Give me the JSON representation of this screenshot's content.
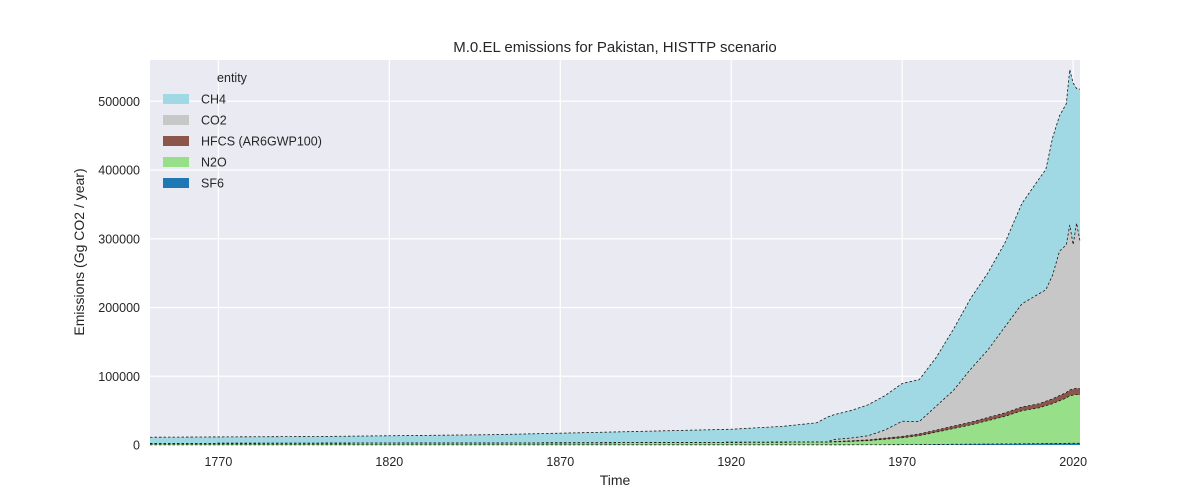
{
  "chart_data": {
    "type": "area",
    "title": "M.0.EL emissions for Pakistan, HISTTP scenario",
    "xlabel": "Time",
    "ylabel": "Emissions (Gg CO2 / year)",
    "xlim": [
      1750,
      2022
    ],
    "ylim": [
      0,
      560000
    ],
    "xticks": [
      1770,
      1820,
      1870,
      1920,
      1970,
      2020
    ],
    "yticks": [
      0,
      100000,
      200000,
      300000,
      400000,
      500000
    ],
    "grid": true,
    "legend_title": "entity",
    "legend_position": "top-left",
    "stacking_order_bottom_to_top": [
      "SF6",
      "N2O",
      "HFCS (AR6GWP100)",
      "CO2",
      "CH4"
    ],
    "legend_order": [
      "CH4",
      "CO2",
      "HFCS (AR6GWP100)",
      "N2O",
      "SF6"
    ],
    "colors": {
      "CH4": "#a0d8e3",
      "CO2": "#c7c7c7",
      "HFCS (AR6GWP100)": "#8c564b",
      "N2O": "#98df8a",
      "SF6": "#1f77b4"
    },
    "x": [
      1750,
      1800,
      1850,
      1880,
      1900,
      1920,
      1935,
      1945,
      1948,
      1950,
      1955,
      1960,
      1965,
      1970,
      1975,
      1980,
      1985,
      1990,
      1995,
      2000,
      2005,
      2010,
      2012,
      2014,
      2016,
      2018,
      2019,
      2020,
      2021,
      2022
    ],
    "series": [
      {
        "name": "SF6",
        "values": [
          300,
          300,
          300,
          300,
          300,
          300,
          300,
          300,
          300,
          300,
          300,
          400,
          400,
          500,
          600,
          800,
          1000,
          1200,
          1400,
          1600,
          1800,
          2000,
          2100,
          2200,
          2300,
          2400,
          2500,
          2500,
          2600,
          2600
        ]
      },
      {
        "name": "N2O",
        "values": [
          2000,
          2300,
          2700,
          3000,
          3300,
          3600,
          3800,
          4000,
          4000,
          4200,
          5000,
          6000,
          8000,
          10000,
          13000,
          18000,
          23000,
          28000,
          34000,
          40000,
          48000,
          52000,
          55000,
          58000,
          62000,
          66000,
          69000,
          70000,
          71000,
          70000
        ]
      },
      {
        "name": "HFCS (AR6GWP100)",
        "values": [
          0,
          0,
          0,
          0,
          0,
          0,
          0,
          0,
          0,
          500,
          800,
          1000,
          1500,
          2000,
          2500,
          3000,
          3500,
          4000,
          4500,
          5000,
          5500,
          6000,
          6500,
          7000,
          7500,
          8000,
          8500,
          9000,
          9000,
          9000
        ]
      },
      {
        "name": "CO2",
        "values": [
          0,
          0,
          0,
          0,
          0,
          0,
          0,
          0,
          0,
          3000,
          4000,
          6000,
          12000,
          22000,
          18000,
          35000,
          52000,
          77000,
          98000,
          125000,
          150000,
          160000,
          162000,
          180000,
          210000,
          215000,
          240000,
          210000,
          240000,
          215000
        ]
      },
      {
        "name": "CH4",
        "values": [
          9000,
          9800,
          12000,
          15000,
          17000,
          19000,
          23000,
          28000,
          36000,
          36000,
          40000,
          45000,
          50000,
          55000,
          61000,
          71000,
          89000,
          103000,
          112000,
          122000,
          146000,
          167000,
          175000,
          200000,
          197000,
          205000,
          226000,
          235000,
          196000,
          221000
        ]
      }
    ]
  }
}
